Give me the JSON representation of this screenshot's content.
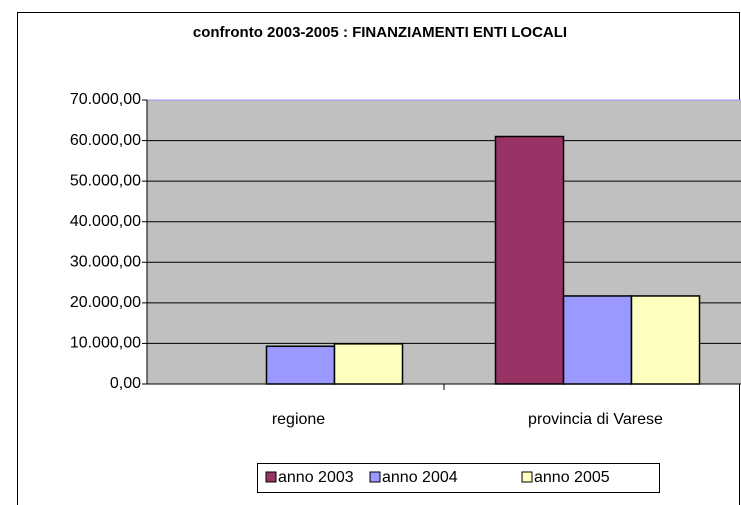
{
  "chart_data": {
    "type": "bar",
    "title": "confronto 2003-2005 : FINANZIAMENTI ENTI LOCALI",
    "categories": [
      "regione",
      "provincia di Varese"
    ],
    "series": [
      {
        "name": "anno 2003",
        "color": "#993366",
        "values": [
          0,
          61000
        ]
      },
      {
        "name": "anno 2004",
        "color": "#9999ff",
        "values": [
          9300,
          21700
        ]
      },
      {
        "name": "anno 2005",
        "color": "#ffffc0",
        "values": [
          9900,
          21700
        ]
      }
    ],
    "ylim": [
      0,
      70000
    ],
    "yticks": [
      {
        "value": 0,
        "label": "0,00"
      },
      {
        "value": 10000,
        "label": "10.000,00"
      },
      {
        "value": 20000,
        "label": "20.000,00"
      },
      {
        "value": 30000,
        "label": "30.000,00"
      },
      {
        "value": 40000,
        "label": "40.000,00"
      },
      {
        "value": 50000,
        "label": "50.000,00"
      },
      {
        "value": 60000,
        "label": "60.000,00"
      },
      {
        "value": 70000,
        "label": "70.000,00"
      }
    ],
    "grid": true,
    "legend": "bottom"
  }
}
